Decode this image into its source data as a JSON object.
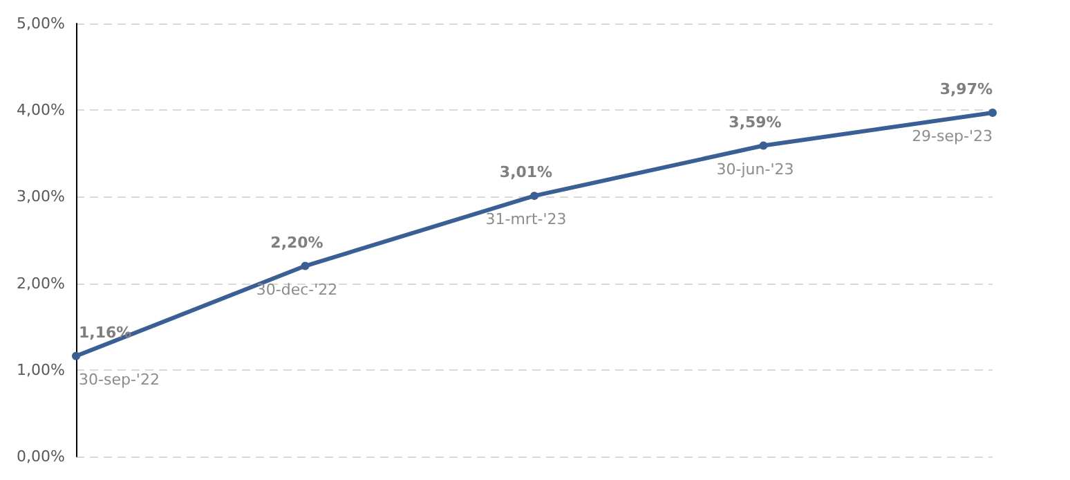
{
  "chart_data": {
    "type": "line",
    "categories": [
      "30-sep-'22",
      "30-dec-'22",
      "31-mrt-'23",
      "30-jun-'23",
      "29-sep-'23"
    ],
    "series": [
      {
        "color": "#3a5f95",
        "values": [
          1.16,
          2.2,
          3.01,
          3.59,
          3.97
        ],
        "value_labels": [
          "1,16%",
          "2,20%",
          "3,01%",
          "3,59%",
          "3,97%"
        ]
      }
    ],
    "ylim": [
      0,
      5
    ],
    "yticks": [
      {
        "value": 0,
        "label": "0,00%"
      },
      {
        "value": 1,
        "label": "1,00%"
      },
      {
        "value": 2,
        "label": "2,00%"
      },
      {
        "value": 3,
        "label": "3,00%"
      },
      {
        "value": 4,
        "label": "4,00%"
      },
      {
        "value": 5,
        "label": "5,00%"
      }
    ],
    "grid": "y",
    "marker": "circle",
    "line_style": "solid"
  }
}
